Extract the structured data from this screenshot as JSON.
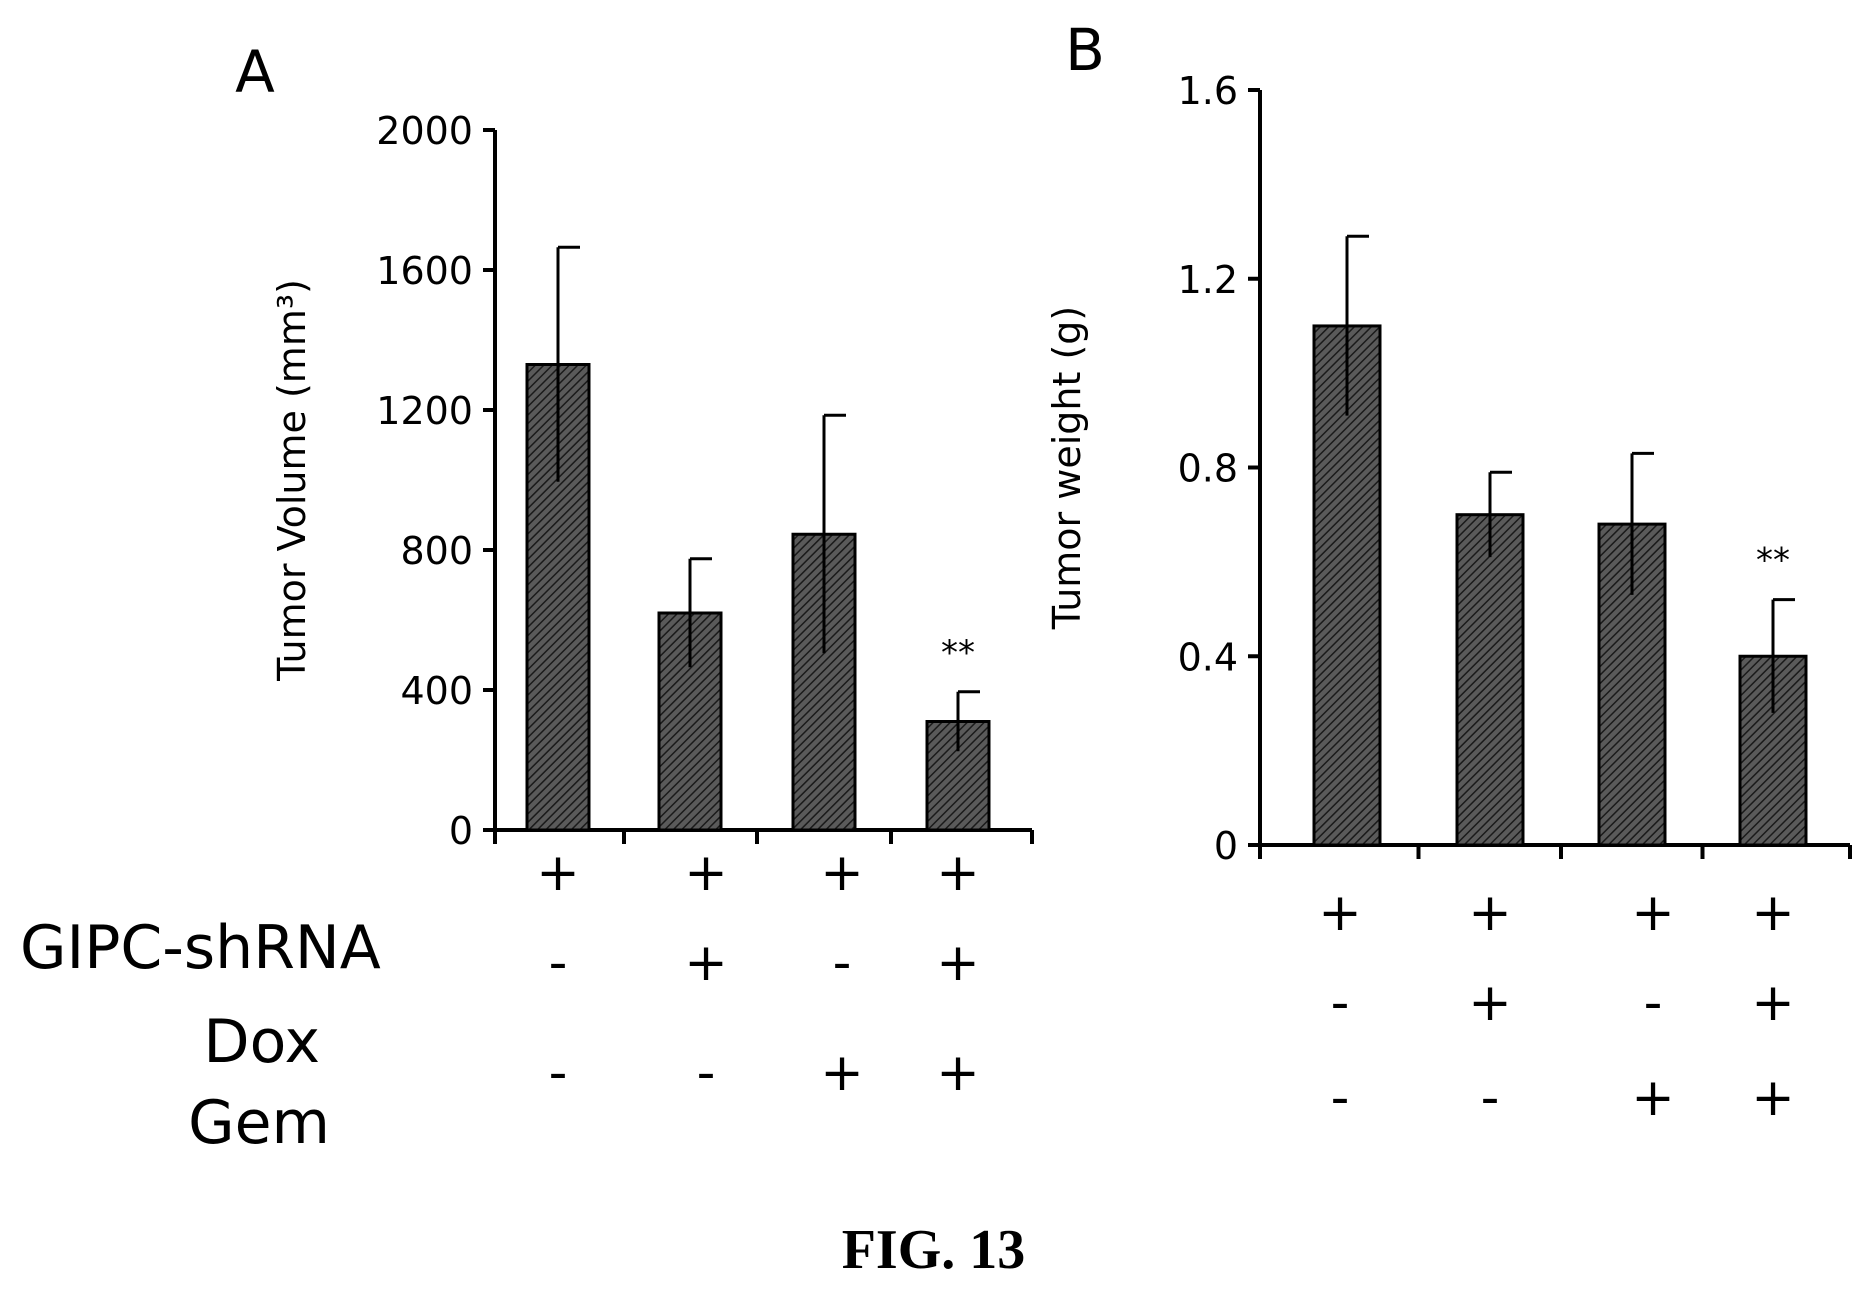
{
  "caption": "FIG. 13",
  "colors": {
    "bar": "#4a4a4a",
    "bar_hatch": "#1a1a1a",
    "axis": "#000000"
  },
  "row_labels": [
    "GIPC-shRNA",
    "Dox",
    "Gem"
  ],
  "chart_data": [
    {
      "type": "bar",
      "panel": "A",
      "ylabel": "Tumor Volume (mm³)",
      "ylim": [
        0,
        2000
      ],
      "yticks": [
        0,
        400,
        800,
        1200,
        1600,
        2000
      ],
      "ytick_labels": [
        "0",
        "400",
        "800",
        "1200",
        "1600",
        "2000"
      ],
      "values": [
        1330,
        620,
        845,
        310
      ],
      "error": [
        335,
        155,
        340,
        85
      ],
      "significance": [
        "",
        "",
        "",
        "**"
      ],
      "conditions": [
        [
          "+",
          "+",
          "+",
          "+"
        ],
        [
          "-",
          "+",
          "-",
          "+"
        ],
        [
          "-",
          "-",
          "+",
          "+"
        ]
      ]
    },
    {
      "type": "bar",
      "panel": "B",
      "ylabel": "Tumor weight (g)",
      "ylim": [
        0,
        1.6
      ],
      "yticks": [
        0,
        0.4,
        0.8,
        1.2,
        1.6
      ],
      "ytick_labels": [
        "0",
        "0.4",
        "0.8",
        "1.2",
        "1.6"
      ],
      "values": [
        1.1,
        0.7,
        0.68,
        0.4
      ],
      "error": [
        0.19,
        0.09,
        0.15,
        0.12
      ],
      "significance": [
        "",
        "",
        "",
        "**"
      ],
      "conditions": [
        [
          "+",
          "+",
          "+",
          "+"
        ],
        [
          "-",
          "+",
          "-",
          "+"
        ],
        [
          "-",
          "-",
          "+",
          "+"
        ]
      ]
    }
  ]
}
